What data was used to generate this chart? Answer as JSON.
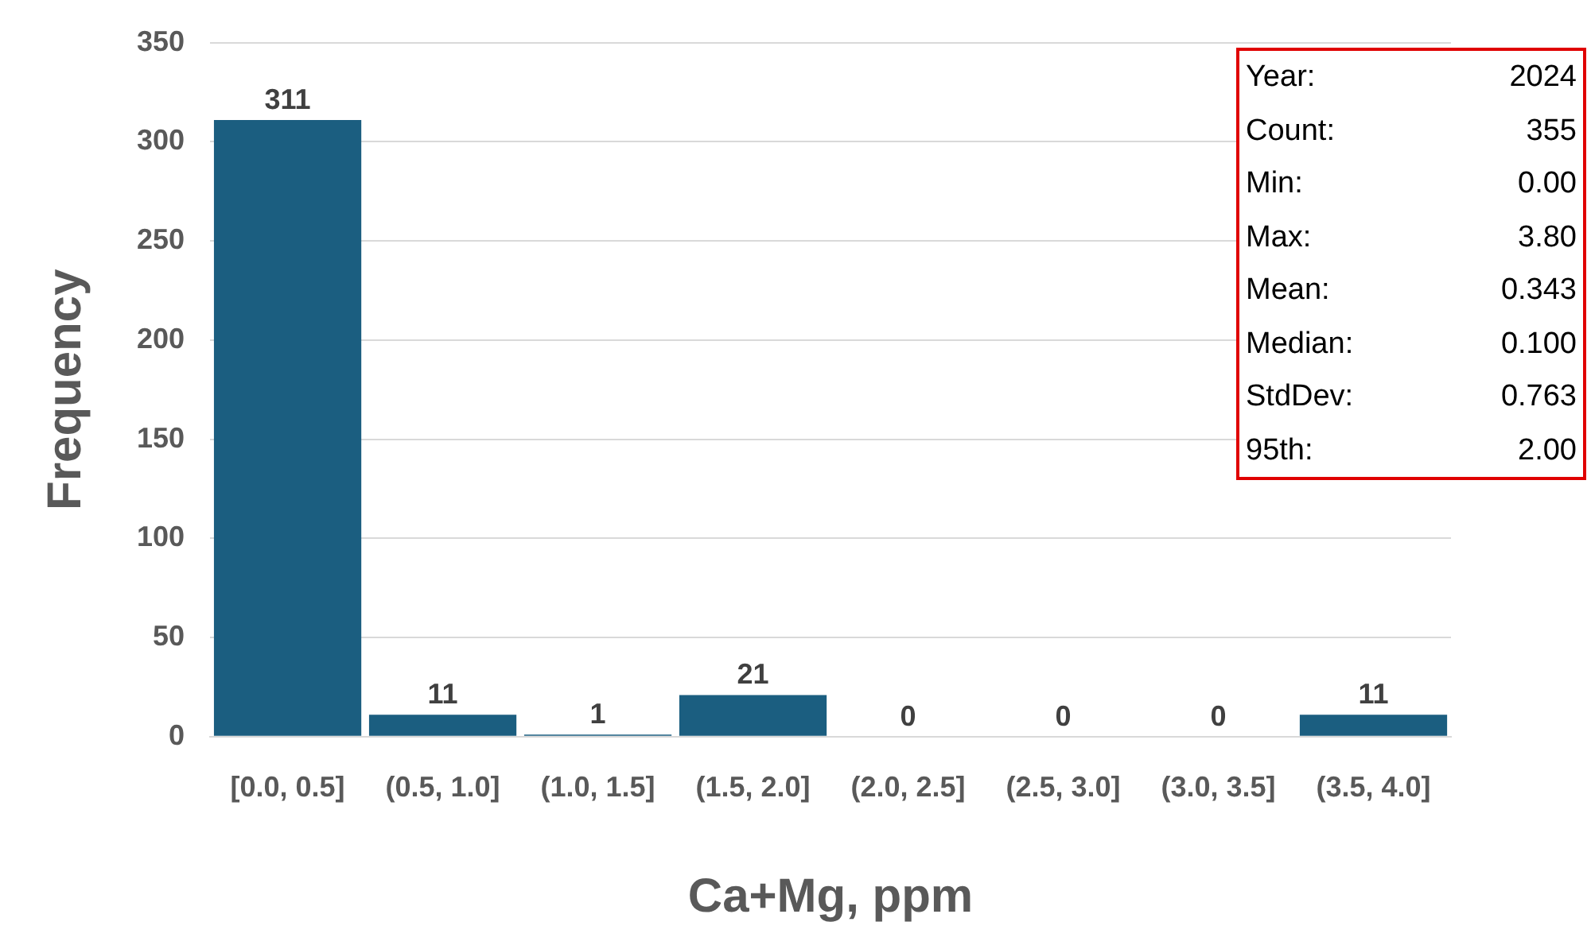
{
  "chart_data": {
    "type": "bar",
    "xlabel": "Ca+Mg, ppm",
    "ylabel": "Frequency",
    "categories": [
      "[0.0, 0.5]",
      "(0.5, 1.0]",
      "(1.0, 1.5]",
      "(1.5, 2.0]",
      "(2.0, 2.5]",
      "(2.5, 3.0]",
      "(3.0, 3.5]",
      "(3.5, 4.0]"
    ],
    "values": [
      311,
      11,
      1,
      21,
      0,
      0,
      0,
      11
    ],
    "color": "#1b5e80",
    "ylim": [
      0,
      350
    ],
    "yticks": [
      0,
      50,
      100,
      150,
      200,
      250,
      300,
      350
    ],
    "grid": "y",
    "legend": false,
    "data_labels": true,
    "annotations": [
      "Year:",
      "2024",
      "Count:",
      "355",
      "Min:",
      "0.00",
      "Max:",
      "3.80",
      "Mean:",
      "0.343",
      "Median:",
      "0.100",
      "StdDev:",
      "0.763",
      "95th:",
      "2.00"
    ]
  }
}
